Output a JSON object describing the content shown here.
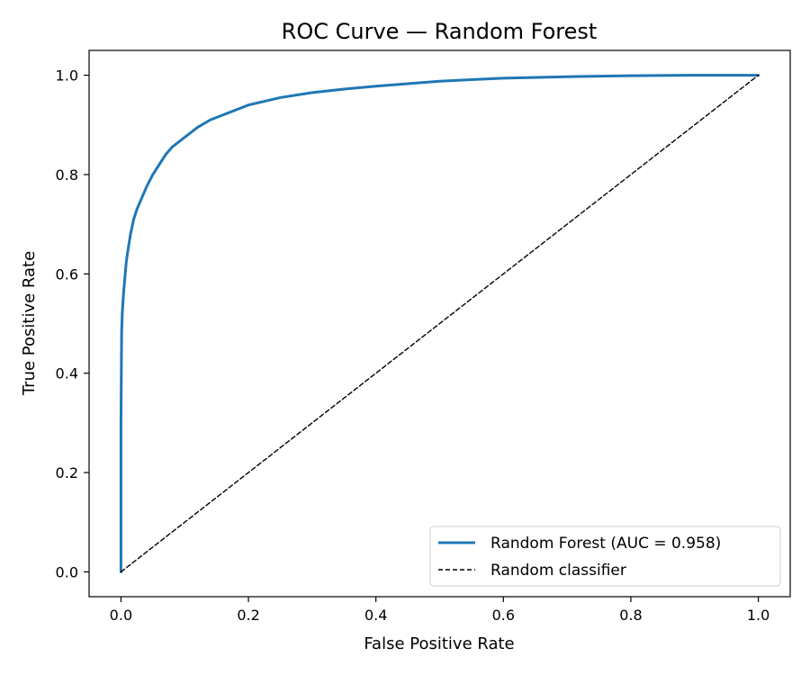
{
  "chart_data": {
    "type": "line",
    "title": "ROC Curve — Random Forest",
    "xlabel": "False Positive Rate",
    "ylabel": "True Positive Rate",
    "xlim": [
      -0.05,
      1.05
    ],
    "ylim": [
      -0.05,
      1.05
    ],
    "xticks": [
      0.0,
      0.2,
      0.4,
      0.6,
      0.8,
      1.0
    ],
    "yticks": [
      0.0,
      0.2,
      0.4,
      0.6,
      0.8,
      1.0
    ],
    "xtick_labels": [
      "0.0",
      "0.2",
      "0.4",
      "0.6",
      "0.8",
      "1.0"
    ],
    "ytick_labels": [
      "0.0",
      "0.2",
      "0.4",
      "0.6",
      "0.8",
      "1.0"
    ],
    "grid": false,
    "legend_position": "lower-right",
    "series": [
      {
        "name": "Random Forest (AUC = 0.958)",
        "color": "#1f77b4",
        "style": "solid",
        "x": [
          0.0,
          0.0,
          0.001,
          0.002,
          0.004,
          0.006,
          0.008,
          0.01,
          0.015,
          0.02,
          0.025,
          0.03,
          0.04,
          0.05,
          0.06,
          0.07,
          0.08,
          0.09,
          0.1,
          0.12,
          0.14,
          0.16,
          0.18,
          0.2,
          0.25,
          0.3,
          0.35,
          0.4,
          0.45,
          0.5,
          0.55,
          0.6,
          0.7,
          0.8,
          0.9,
          1.0
        ],
        "y": [
          0.0,
          0.3,
          0.48,
          0.52,
          0.56,
          0.59,
          0.62,
          0.64,
          0.68,
          0.71,
          0.73,
          0.745,
          0.775,
          0.8,
          0.82,
          0.84,
          0.855,
          0.865,
          0.875,
          0.895,
          0.91,
          0.92,
          0.93,
          0.94,
          0.955,
          0.965,
          0.972,
          0.978,
          0.983,
          0.988,
          0.991,
          0.994,
          0.997,
          0.999,
          1.0,
          1.0
        ]
      },
      {
        "name": "Random classifier",
        "color": "#000000",
        "style": "dashed",
        "x": [
          0.0,
          1.0
        ],
        "y": [
          0.0,
          1.0
        ]
      }
    ]
  }
}
